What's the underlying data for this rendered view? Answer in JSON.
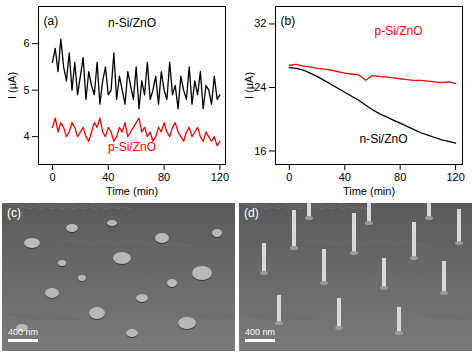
{
  "chart_data": [
    {
      "type": "line",
      "annotations": [
        "(a)"
      ],
      "x_label": "Time (min)",
      "y_label": "I (μA)",
      "x": [
        0,
        2,
        4,
        6,
        8,
        10,
        12,
        14,
        16,
        18,
        20,
        22,
        24,
        26,
        28,
        30,
        32,
        34,
        36,
        38,
        40,
        42,
        44,
        46,
        48,
        50,
        52,
        54,
        56,
        58,
        60,
        62,
        64,
        66,
        68,
        70,
        72,
        74,
        76,
        78,
        80,
        82,
        84,
        86,
        88,
        90,
        92,
        94,
        96,
        98,
        100,
        102,
        104,
        106,
        108,
        110,
        112,
        114,
        116,
        118,
        120
      ],
      "series": [
        {
          "name": "n-Si/ZnO",
          "color": "#000000",
          "values": [
            5.6,
            5.9,
            5.4,
            6.1,
            5.5,
            5.2,
            5.8,
            5.0,
            5.6,
            4.9,
            5.3,
            5.7,
            4.8,
            5.4,
            5.1,
            4.9,
            5.6,
            4.7,
            5.2,
            5.5,
            4.9,
            5.0,
            5.8,
            4.8,
            5.3,
            5.0,
            4.7,
            5.4,
            5.1,
            4.8,
            5.5,
            4.6,
            5.2,
            4.9,
            5.6,
            4.8,
            5.0,
            5.3,
            4.7,
            5.4,
            5.0,
            4.8,
            5.6,
            4.9,
            5.1,
            4.6,
            5.3,
            5.0,
            4.8,
            5.5,
            4.7,
            5.2,
            4.9,
            5.4,
            4.6,
            5.1,
            5.0,
            4.7,
            5.3,
            4.8,
            4.9
          ]
        },
        {
          "name": "p-Si/ZnO",
          "color": "#ff0000",
          "values": [
            4.2,
            4.4,
            4.1,
            4.3,
            4.2,
            4.0,
            4.1,
            4.3,
            4.2,
            4.0,
            4.1,
            4.2,
            4.0,
            3.9,
            4.1,
            4.3,
            4.2,
            4.4,
            4.1,
            4.0,
            4.2,
            4.1,
            3.9,
            4.0,
            4.2,
            4.1,
            4.3,
            4.0,
            4.1,
            4.2,
            4.3,
            4.4,
            4.1,
            4.2,
            4.0,
            4.1,
            3.9,
            4.0,
            4.2,
            4.1,
            4.3,
            4.1,
            4.0,
            4.2,
            4.3,
            4.1,
            4.0,
            3.9,
            4.1,
            4.2,
            4.0,
            4.1,
            4.2,
            4.0,
            3.9,
            4.1,
            4.0,
            3.9,
            4.0,
            3.8,
            3.9
          ]
        }
      ],
      "xlim": [
        -10,
        124
      ],
      "xticks": [
        0,
        40,
        80,
        120
      ],
      "ylim": [
        3.4,
        6.8
      ],
      "yticks": [
        4,
        5,
        6
      ]
    },
    {
      "type": "line",
      "annotations": [
        "(b)"
      ],
      "x_label": "Time (min)",
      "y_label": "I (μA)",
      "x": [
        0,
        5,
        10,
        15,
        20,
        25,
        30,
        35,
        40,
        45,
        50,
        55,
        60,
        65,
        70,
        75,
        80,
        85,
        90,
        95,
        100,
        105,
        110,
        115,
        120
      ],
      "series": [
        {
          "name": "p-Si/ZnO",
          "color": "#ff0000",
          "values": [
            26.8,
            26.9,
            26.7,
            26.6,
            26.4,
            26.3,
            26.2,
            26.0,
            25.8,
            25.7,
            25.6,
            24.9,
            25.5,
            25.4,
            25.3,
            25.2,
            25.1,
            25.0,
            24.9,
            24.9,
            24.8,
            24.7,
            24.6,
            24.7,
            24.5
          ]
        },
        {
          "name": "n-Si/ZnO",
          "color": "#000000",
          "values": [
            26.5,
            26.4,
            26.2,
            25.8,
            25.4,
            24.9,
            24.4,
            23.9,
            23.4,
            22.9,
            22.4,
            21.8,
            21.2,
            20.7,
            20.3,
            19.9,
            19.5,
            19.1,
            18.7,
            18.3,
            18.0,
            17.7,
            17.4,
            17.2,
            17.0
          ]
        }
      ],
      "xlim": [
        -10,
        125
      ],
      "xticks": [
        0,
        40,
        80,
        120
      ],
      "ylim": [
        14.3,
        34.2
      ],
      "yticks": [
        16,
        24,
        32
      ]
    }
  ],
  "images": [
    {
      "label": "(c)",
      "scale_bar": "400 nm"
    },
    {
      "label": "(d)",
      "scale_bar": "400 nm"
    }
  ]
}
